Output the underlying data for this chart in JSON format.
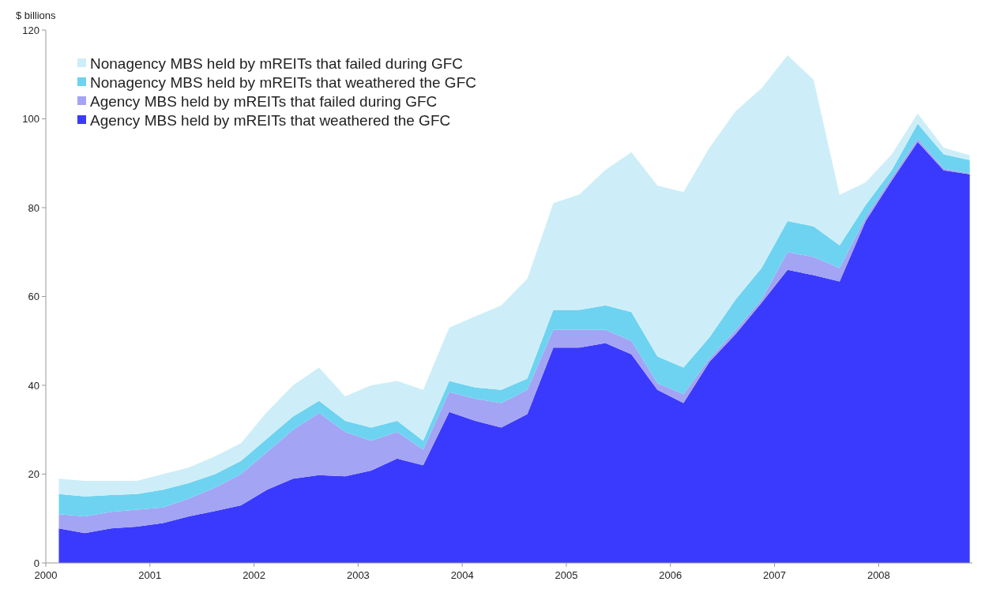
{
  "chart_data": {
    "type": "area",
    "stacked": true,
    "ylabel": "$ billions",
    "legend": "top left",
    "grid": false,
    "x": [
      2000.125,
      2000.375,
      2000.625,
      2000.875,
      2001.125,
      2001.375,
      2001.625,
      2001.875,
      2002.125,
      2002.375,
      2002.625,
      2002.875,
      2003.125,
      2003.375,
      2003.625,
      2003.875,
      2004.125,
      2004.375,
      2004.625,
      2004.875,
      2005.125,
      2005.375,
      2005.625,
      2005.875,
      2006.125,
      2006.375,
      2006.625,
      2006.875,
      2007.125,
      2007.375,
      2007.625,
      2007.875,
      2008.125,
      2008.375,
      2008.625,
      2008.875
    ],
    "xlim": [
      2000,
      2008.9
    ],
    "xticks": [
      2000,
      2001,
      2002,
      2003,
      2004,
      2005,
      2006,
      2007,
      2008
    ],
    "ylim": [
      0,
      120
    ],
    "yticks": [
      0,
      20,
      40,
      60,
      80,
      100,
      120
    ],
    "series": [
      {
        "name": "Agency MBS held by mREITs that weathered the GFC",
        "color": "#3a3aff",
        "values": [
          7.8,
          6.7,
          7.8,
          8.2,
          9,
          10.5,
          11.7,
          13,
          16.5,
          19,
          19.8,
          19.5,
          20.8,
          23.5,
          22,
          34,
          32,
          30.5,
          33.5,
          48.5,
          48.5,
          49.5,
          47,
          39,
          36,
          45.3,
          51.5,
          58.6,
          66,
          64.8,
          63.4,
          77,
          86.1,
          94.8,
          88.4,
          87.5
        ]
      },
      {
        "name": "Agency MBS held by mREITs that failed during GFC",
        "color": "#a4a4f4",
        "values": [
          3.2,
          3.8,
          3.7,
          3.8,
          3.5,
          4,
          5.3,
          7,
          8.5,
          11,
          14,
          10,
          6.7,
          6,
          3.5,
          4.5,
          5,
          5.5,
          5.5,
          4,
          4,
          3,
          3,
          1.5,
          2,
          0.7,
          0.9,
          0.7,
          4,
          4.1,
          3,
          0.8,
          0.7,
          0.7,
          0.4,
          0.2
        ]
      },
      {
        "name": "Nonagency MBS held by mREITs that weathered the GFC",
        "color": "#6dd3f0",
        "values": [
          4.5,
          4.5,
          3.8,
          3.5,
          4,
          3.5,
          3,
          3,
          3,
          3,
          2.7,
          2.5,
          3,
          2.5,
          2,
          2.5,
          2.5,
          3,
          2.5,
          4.5,
          4.5,
          5.5,
          6.5,
          6,
          6,
          4.8,
          6.9,
          7.1,
          7,
          6.9,
          5.1,
          2.8,
          1.6,
          3.4,
          3.2,
          3
        ]
      },
      {
        "name": "Nonagency MBS held by mREITs that failed during GFC",
        "color": "#cdeef8",
        "values": [
          3.5,
          3.5,
          3.2,
          3,
          3.5,
          3.5,
          4,
          4,
          6,
          7,
          7.5,
          5.5,
          9.5,
          9,
          11.5,
          12,
          16,
          19,
          22.5,
          24,
          26,
          30.5,
          36,
          38.5,
          39.5,
          42.7,
          42.4,
          40.5,
          37.3,
          33,
          11.4,
          5.1,
          3.6,
          2.3,
          1.5,
          1.1
        ]
      }
    ]
  }
}
